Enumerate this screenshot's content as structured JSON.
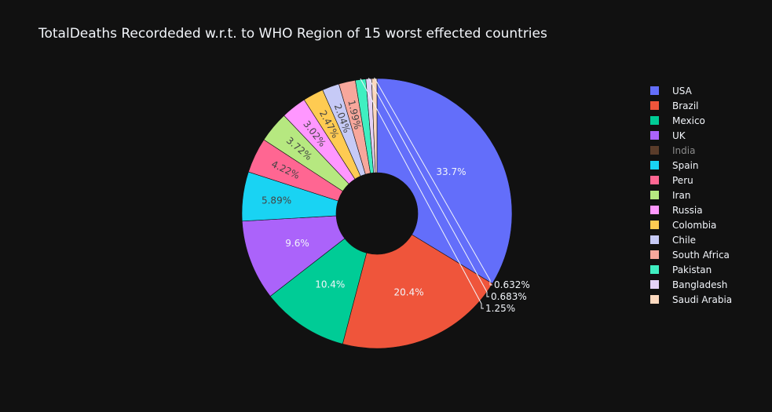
{
  "chart_data": {
    "type": "pie",
    "title": "TotalDeaths Recordeded w.r.t. to WHO Region of 15 worst effected countries",
    "hole": true,
    "legend_position": "right",
    "slices": [
      {
        "label": "USA",
        "percent": 33.7,
        "text": "33.7%",
        "color": "#636efa",
        "visible": true
      },
      {
        "label": "Brazil",
        "percent": 20.4,
        "text": "20.4%",
        "color": "#ef553b",
        "visible": true
      },
      {
        "label": "Mexico",
        "percent": 10.4,
        "text": "10.4%",
        "color": "#00cc96",
        "visible": true
      },
      {
        "label": "UK",
        "percent": 9.6,
        "text": "9.6%",
        "color": "#ab63fa",
        "visible": true
      },
      {
        "label": "India",
        "percent": 0,
        "text": "",
        "color": "#8c5a3c",
        "visible": false
      },
      {
        "label": "Spain",
        "percent": 5.89,
        "text": "5.89%",
        "color": "#19d3f3",
        "visible": true
      },
      {
        "label": "Peru",
        "percent": 4.22,
        "text": "4.22%",
        "color": "#ff6692",
        "visible": true
      },
      {
        "label": "Iran",
        "percent": 3.72,
        "text": "3.72%",
        "color": "#b6e880",
        "visible": true
      },
      {
        "label": "Russia",
        "percent": 3.02,
        "text": "3.02%",
        "color": "#ff97ff",
        "visible": true
      },
      {
        "label": "Colombia",
        "percent": 2.47,
        "text": "2.47%",
        "color": "#fecb52",
        "visible": true
      },
      {
        "label": "Chile",
        "percent": 2.04,
        "text": "2.04%",
        "color": "#c6caf6",
        "visible": true
      },
      {
        "label": "South Africa",
        "percent": 1.99,
        "text": "1.99%",
        "color": "#f7a79c",
        "visible": true
      },
      {
        "label": "Pakistan",
        "percent": 1.25,
        "text": "1.25%",
        "color": "#3fefc1",
        "visible": true
      },
      {
        "label": "Bangladesh",
        "percent": 0.683,
        "text": "0.683%",
        "color": "#e4d2f7",
        "visible": true
      },
      {
        "label": "Saudi Arabia",
        "percent": 0.632,
        "text": "0.632%",
        "color": "#fdd9bf",
        "visible": true
      }
    ]
  }
}
